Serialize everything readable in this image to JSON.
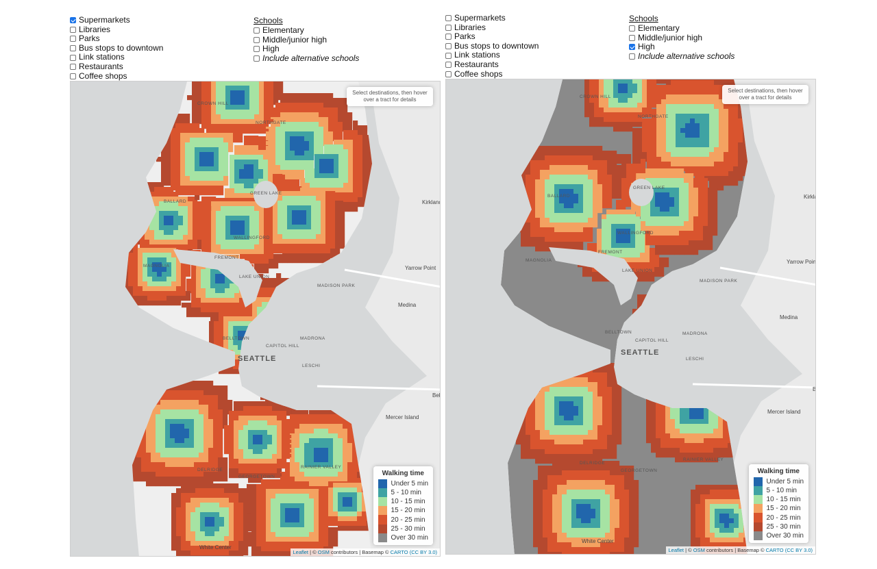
{
  "panels": [
    {
      "destinations": [
        {
          "label": "Supermarkets",
          "checked": true
        },
        {
          "label": "Libraries",
          "checked": false
        },
        {
          "label": "Parks",
          "checked": false
        },
        {
          "label": "Bus stops to downtown",
          "checked": false
        },
        {
          "label": "Link stations",
          "checked": false
        },
        {
          "label": "Restaurants",
          "checked": false
        },
        {
          "label": "Coffee shops",
          "checked": false
        }
      ],
      "schools_heading": "Schools",
      "schools": [
        {
          "label": "Elementary",
          "checked": false
        },
        {
          "label": "Middle/junior high",
          "checked": false
        },
        {
          "label": "High",
          "checked": false
        },
        {
          "label": "Include alternative schools",
          "checked": false,
          "italic": true
        }
      ],
      "hint": "Select destinations, then hover over a tract for details"
    },
    {
      "destinations": [
        {
          "label": "Supermarkets",
          "checked": false
        },
        {
          "label": "Libraries",
          "checked": false
        },
        {
          "label": "Parks",
          "checked": false
        },
        {
          "label": "Bus stops to downtown",
          "checked": false
        },
        {
          "label": "Link stations",
          "checked": false
        },
        {
          "label": "Restaurants",
          "checked": false
        },
        {
          "label": "Coffee shops",
          "checked": false
        }
      ],
      "schools_heading": "Schools",
      "schools": [
        {
          "label": "Elementary",
          "checked": false
        },
        {
          "label": "Middle/junior high",
          "checked": false
        },
        {
          "label": "High",
          "checked": true
        },
        {
          "label": "Include alternative schools",
          "checked": false,
          "italic": true
        }
      ],
      "hint": "Select destinations, then hover over a tract for details"
    }
  ],
  "legend": {
    "title": "Walking time",
    "items": [
      {
        "label": "Under 5 min",
        "color": "#2166ac"
      },
      {
        "label": "5 - 10 min",
        "color": "#3fa3a3"
      },
      {
        "label": "10 - 15 min",
        "color": "#a6e3a3"
      },
      {
        "label": "15 - 20 min",
        "color": "#f4a261"
      },
      {
        "label": "20 - 25 min",
        "color": "#d9542e"
      },
      {
        "label": "25 - 30 min",
        "color": "#b5492f"
      },
      {
        "label": "Over 30 min",
        "color": "#8a8a8a"
      }
    ]
  },
  "map_labels": {
    "seattle": "SEATTLE",
    "neighborhoods": [
      "Crown Hill",
      "Northgate",
      "Green Lake",
      "Ballard",
      "Wallingford",
      "Fremont",
      "Magnolia",
      "Lake Union",
      "Madison Park",
      "Belltown",
      "Capitol Hill",
      "Madrona",
      "Leschi",
      "Delridge",
      "Georgetown",
      "Rainier Valley"
    ],
    "places": [
      "Kirkland",
      "Yarrow Point",
      "Medina",
      "Mercer Island",
      "White Center",
      "Bellevue"
    ]
  },
  "attribution": {
    "leaflet": "Leaflet",
    "sep1": " | © ",
    "osm": "OSM",
    "mid": " contributors | Basemap © ",
    "carto": "CARTO",
    "cc": "(CC BY 3.0)"
  }
}
